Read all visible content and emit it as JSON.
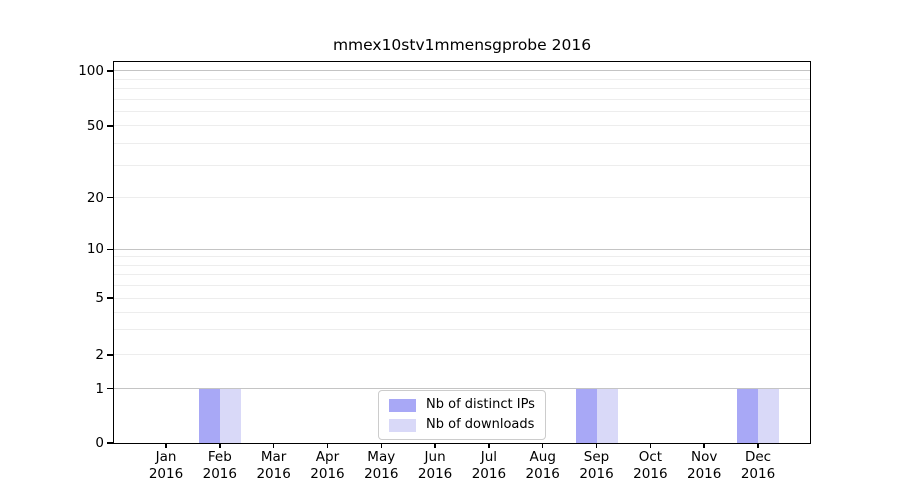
{
  "title": "mmex10stv1mmensgprobe 2016",
  "colors": {
    "distinct_ips": "#a8a8f6",
    "downloads": "#d9d9f8",
    "grid_major": "#c4c4c4",
    "grid_minor": "#ededed",
    "axis": "#000000",
    "background": "#ffffff"
  },
  "legend": {
    "items": [
      "Nb of distinct IPs",
      "Nb of downloads"
    ]
  },
  "chart_data": {
    "type": "bar",
    "title": "mmex10stv1mmensgprobe 2016",
    "categories": [
      "Jan 2016",
      "Feb 2016",
      "Mar 2016",
      "Apr 2016",
      "May 2016",
      "Jun 2016",
      "Jul 2016",
      "Aug 2016",
      "Sep 2016",
      "Oct 2016",
      "Nov 2016",
      "Dec 2016"
    ],
    "x_tick_months": [
      "Jan",
      "Feb",
      "Mar",
      "Apr",
      "May",
      "Jun",
      "Jul",
      "Aug",
      "Sep",
      "Oct",
      "Nov",
      "Dec"
    ],
    "x_tick_year": "2016",
    "series": [
      {
        "name": "Nb of distinct IPs",
        "color_key": "distinct_ips",
        "values": [
          0,
          1,
          0,
          0,
          0,
          0,
          0,
          0,
          1,
          0,
          0,
          1
        ]
      },
      {
        "name": "Nb of downloads",
        "color_key": "downloads",
        "values": [
          0,
          1,
          0,
          0,
          0,
          0,
          0,
          0,
          1,
          0,
          0,
          1
        ]
      }
    ],
    "yscale": "symlog",
    "yticks": [
      0,
      1,
      2,
      5,
      10,
      20,
      50,
      100
    ],
    "ylim": [
      0,
      110
    ],
    "grid": "both",
    "legend_position": "lower center inside",
    "xlabel": "",
    "ylabel": ""
  }
}
